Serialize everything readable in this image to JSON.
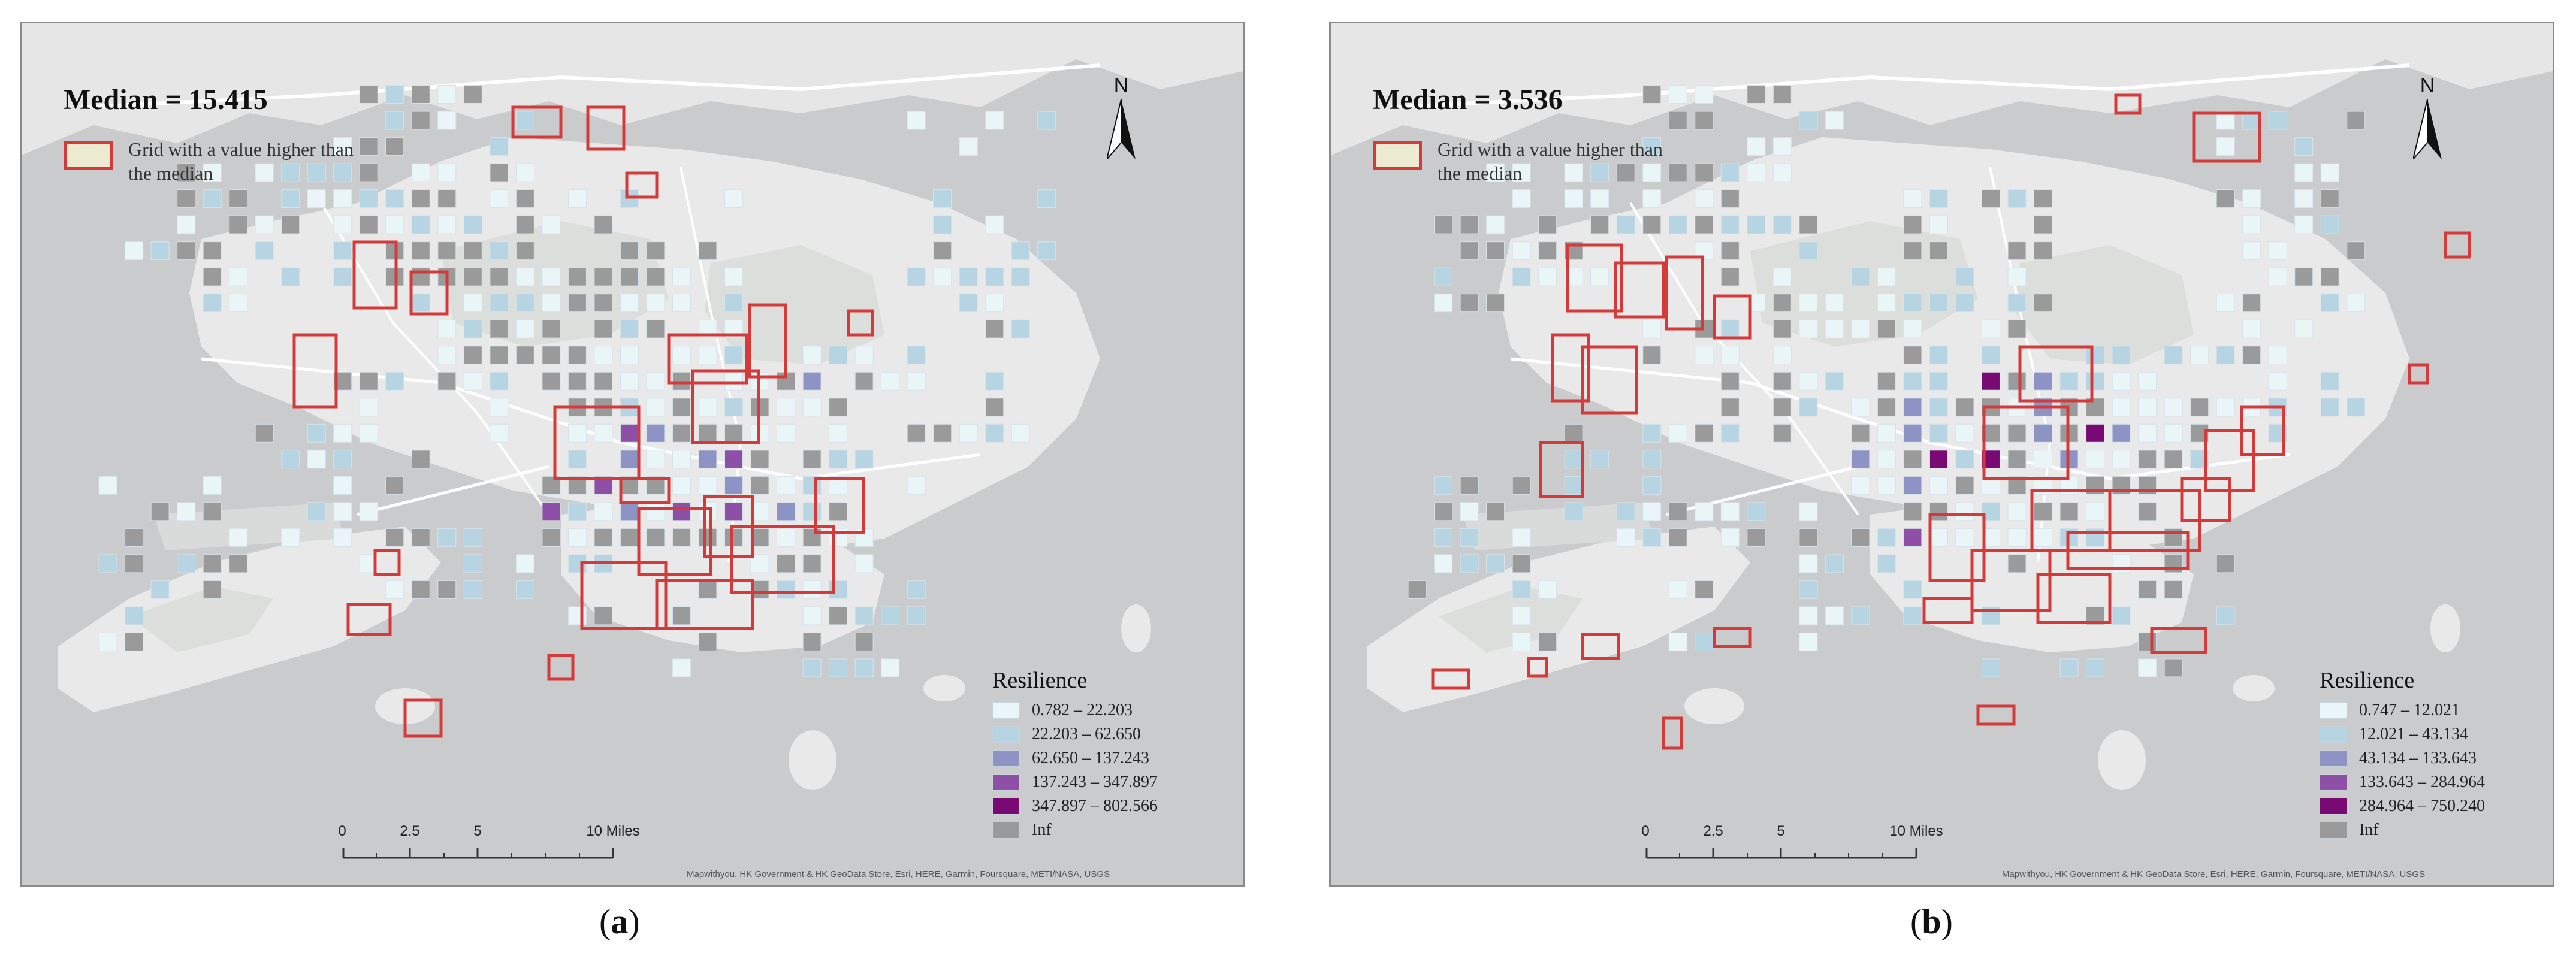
{
  "panels": [
    {
      "id": "a",
      "median_label": "Median = 15.415",
      "highlight_legend_label": "Grid with a value higher than the median",
      "north_label": "N",
      "legend_title": "Resilience",
      "legend": [
        {
          "label": "0.782 – 22.203",
          "color": "#eaf5f8"
        },
        {
          "label": "22.203 – 62.650",
          "color": "#b7d4e2"
        },
        {
          "label": "62.650 – 137.243",
          "color": "#8d93c4"
        },
        {
          "label": "137.243 – 347.897",
          "color": "#8e4fa6"
        },
        {
          "label": "347.897 – 802.566",
          "color": "#7a0a73"
        },
        {
          "label": "Inf",
          "color": "#9a9a9a"
        }
      ],
      "scale_ticks": [
        "0",
        "2.5",
        "5",
        "10 Miles"
      ],
      "credits": "Mapwithyou, HK Government & HK GeoData Store, Esri, HERE, Garmin, Foursquare, METI/NASA, USGS",
      "caption_open": "(",
      "caption_letter": "a",
      "caption_close": ")"
    },
    {
      "id": "b",
      "median_label": "Median = 3.536",
      "highlight_legend_label": "Grid with a value higher than the median",
      "north_label": "N",
      "legend_title": "Resilience",
      "legend": [
        {
          "label": "0.747 – 12.021",
          "color": "#eaf5f8"
        },
        {
          "label": "12.021 – 43.134",
          "color": "#b7d4e2"
        },
        {
          "label": "43.134 – 133.643",
          "color": "#8d93c4"
        },
        {
          "label": "133.643 – 284.964",
          "color": "#8e4fa6"
        },
        {
          "label": "284.964 – 750.240",
          "color": "#7a0a73"
        },
        {
          "label": "Inf",
          "color": "#9a9a9a"
        }
      ],
      "scale_ticks": [
        "0",
        "2.5",
        "5",
        "10 Miles"
      ],
      "credits": "Mapwithyou, HK Government & HK GeoData Store, Esri, HERE, Garmin, Foursquare, METI/NASA, USGS",
      "caption_open": "(",
      "caption_letter": "b",
      "caption_close": ")"
    }
  ],
  "colors": {
    "sea": "#c9cbcc",
    "land": "#e9e9e9",
    "park": "#dcdedc",
    "road": "#ffffff",
    "highlight": "#d43a3a"
  }
}
